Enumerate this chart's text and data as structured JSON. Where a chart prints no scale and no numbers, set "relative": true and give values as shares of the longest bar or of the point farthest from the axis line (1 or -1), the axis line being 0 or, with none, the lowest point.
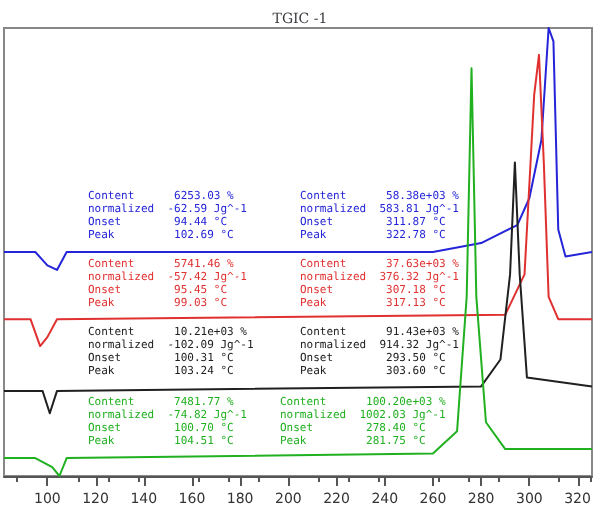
{
  "chart_data": {
    "type": "line",
    "title": "TGIC -1",
    "relative": true,
    "marker": "none",
    "line_style": "solid",
    "xlim": [
      82,
      326
    ],
    "xticks": [
      100,
      120,
      140,
      160,
      180,
      200,
      220,
      240,
      260,
      280,
      300,
      320
    ],
    "series": [
      {
        "color": "#2424d8",
        "x": [
          82,
          95,
          100,
          104,
          108,
          200,
          260,
          280,
          295,
          300,
          305,
          308,
          310,
          312,
          315,
          326
        ],
        "values": [
          0.5,
          0.5,
          0.47,
          0.46,
          0.5,
          0.5,
          0.5,
          0.52,
          0.56,
          0.62,
          0.75,
          1.0,
          0.97,
          0.55,
          0.49,
          0.5
        ]
      },
      {
        "color": "#e03030",
        "x": [
          82,
          93,
          97,
          100,
          104,
          290,
          298,
          302,
          304,
          306,
          308,
          312,
          326
        ],
        "values": [
          0.35,
          0.35,
          0.29,
          0.31,
          0.35,
          0.36,
          0.45,
          0.85,
          0.94,
          0.7,
          0.4,
          0.35,
          0.35
        ]
      },
      {
        "color": "#202020",
        "x": [
          82,
          98,
          101,
          104,
          280,
          288,
          292,
          294,
          296,
          299,
          326
        ],
        "values": [
          0.19,
          0.19,
          0.14,
          0.19,
          0.2,
          0.26,
          0.45,
          0.7,
          0.45,
          0.22,
          0.2
        ]
      },
      {
        "color": "#20b020",
        "x": [
          82,
          95,
          102,
          105,
          108,
          260,
          270,
          274,
          276,
          278,
          282,
          290,
          326
        ],
        "values": [
          0.04,
          0.04,
          0.02,
          0,
          0.04,
          0.05,
          0.1,
          0.4,
          0.91,
          0.4,
          0.12,
          0.06,
          0.06
        ]
      }
    ],
    "annotations": [
      "Content      6253.03 %\nnormalized  -62.59 Jg^-1\nOnset        94.44 °C\nPeak         102.69 °C",
      "Content      58.38e+03 %\nnormalized  583.81 Jg^-1\nOnset        311.87 °C\nPeak         322.78 °C",
      "Content      5741.46 %\nnormalized  -57.42 Jg^-1\nOnset        95.45 °C\nPeak         99.03 °C",
      "Content      37.63e+03 %\nnormalized  376.32 Jg^-1\nOnset        307.18 °C\nPeak         317.13 °C",
      "Content      10.21e+03 %\nnormalized  -102.09 Jg^-1\nOnset        100.31 °C\nPeak         103.24 °C",
      "Content      91.43e+03 %\nnormalized  914.32 Jg^-1\nOnset        293.50 °C\nPeak         303.60 °C",
      "Content      7481.77 %\nnormalized  -74.82 Jg^-1\nOnset        100.70 °C\nPeak         104.51 °C",
      "Content      100.20e+03 %\nnormalized  1002.03 Jg^-1\nOnset        278.40 °C\nPeak         281.75 °C"
    ]
  }
}
